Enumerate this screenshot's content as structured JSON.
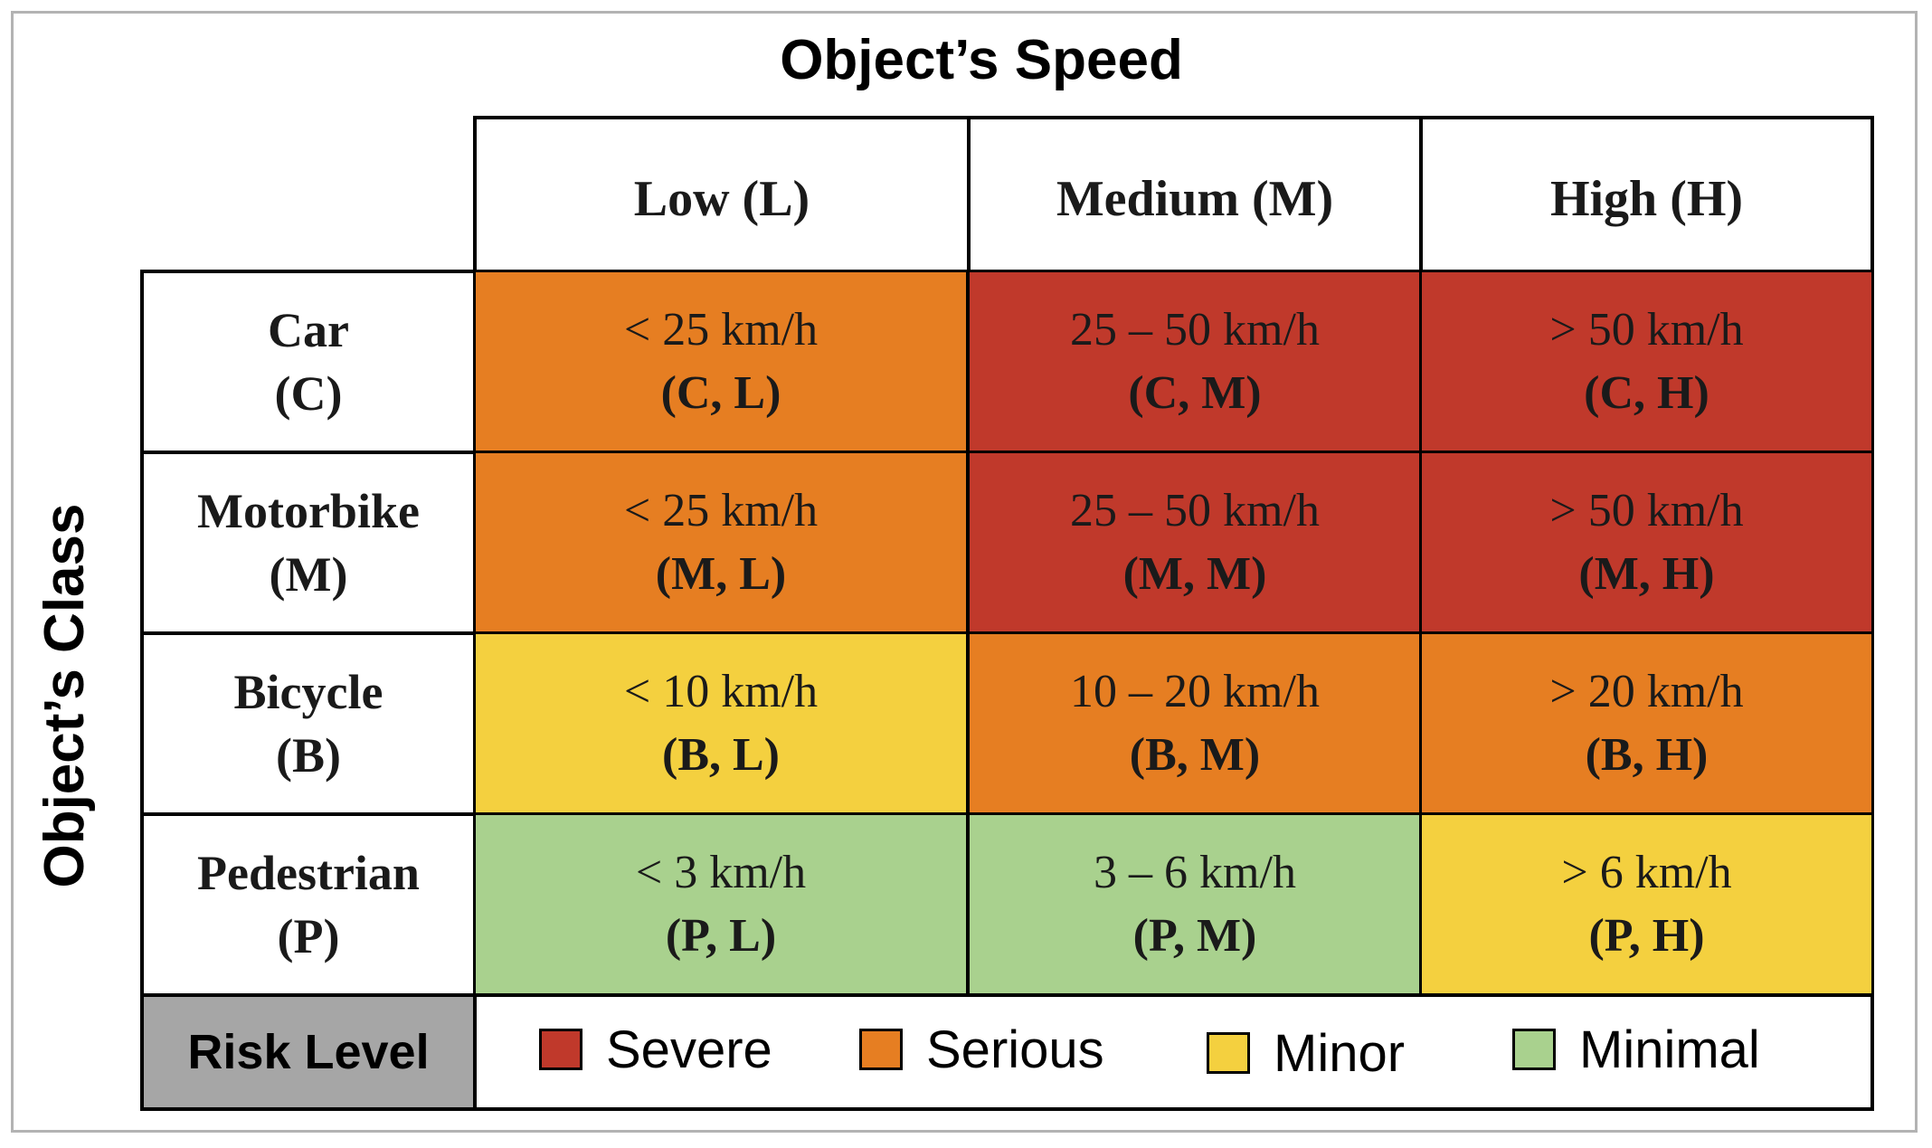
{
  "title_speed": "Object’s Speed",
  "title_class": "Object’s Class",
  "colors": {
    "severe": "#c0392b",
    "serious": "#e67e22",
    "minor": "#f4d03f",
    "minimal": "#a9d18e",
    "risk_label_bg": "#a6a6a6"
  },
  "columns": [
    {
      "label": "Low (L)"
    },
    {
      "label": "Medium (M)"
    },
    {
      "label": "High (H)"
    }
  ],
  "rows": [
    {
      "label": "Car",
      "code": "(C)",
      "cells": [
        {
          "speed": "< 25 km/h",
          "code": "(C, L)",
          "risk": "serious"
        },
        {
          "speed": "25 – 50 km/h",
          "code": "(C, M)",
          "risk": "severe"
        },
        {
          "speed": "> 50 km/h",
          "code": "(C, H)",
          "risk": "severe"
        }
      ]
    },
    {
      "label": "Motorbike",
      "code": "(M)",
      "cells": [
        {
          "speed": "< 25 km/h",
          "code": "(M, L)",
          "risk": "serious"
        },
        {
          "speed": "25 – 50 km/h",
          "code": "(M, M)",
          "risk": "severe"
        },
        {
          "speed": "> 50 km/h",
          "code": "(M, H)",
          "risk": "severe"
        }
      ]
    },
    {
      "label": "Bicycle",
      "code": "(B)",
      "cells": [
        {
          "speed": "< 10 km/h",
          "code": "(B, L)",
          "risk": "minor"
        },
        {
          "speed": "10 – 20 km/h",
          "code": "(B, M)",
          "risk": "serious"
        },
        {
          "speed": "> 20 km/h",
          "code": "(B, H)",
          "risk": "serious"
        }
      ]
    },
    {
      "label": "Pedestrian",
      "code": "(P)",
      "cells": [
        {
          "speed": "< 3 km/h",
          "code": "(P, L)",
          "risk": "minimal"
        },
        {
          "speed": "3 – 6 km/h",
          "code": "(P, M)",
          "risk": "minimal"
        },
        {
          "speed": "> 6 km/h",
          "code": "(P, H)",
          "risk": "minor"
        }
      ]
    }
  ],
  "legend": {
    "label": "Risk Level",
    "items": [
      {
        "label": "Severe",
        "risk": "severe"
      },
      {
        "label": "Serious",
        "risk": "serious"
      },
      {
        "label": "Minor",
        "risk": "minor"
      },
      {
        "label": "Minimal",
        "risk": "minimal"
      }
    ]
  }
}
